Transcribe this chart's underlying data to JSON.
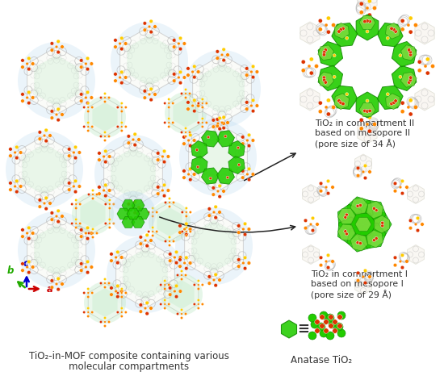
{
  "background_color": "#ffffff",
  "caption_main_line1": "TiO₂-in-MOF composite containing various",
  "caption_main_line2": "molecular compartments",
  "caption_II_line1": "TiO₂ in compartment II",
  "caption_II_line2": "based on mesopore II",
  "caption_II_line3": "(pore size of 34 Å)",
  "caption_I_line1": "TiO₂ in compartment I",
  "caption_I_line2": "based on mesopore I",
  "caption_I_line3": "(pore size of 29 Å)",
  "caption_bottom": "Anatase TiO₂",
  "axis_a_color": "#cc0000",
  "axis_b_color": "#22aa00",
  "axis_c_color": "#0000cc",
  "green_tio2": "#22cc00",
  "green_dark": "#118800",
  "green_light": "#88dd44",
  "blue_pore": "#b8d8f0",
  "green_pore": "#b8e8c0",
  "orange_node": "#ff8800",
  "yellow_node": "#ffcc00",
  "red_node": "#dd3300",
  "ligand_gray": "#aaaaaa",
  "ligand_pale": "#e8e0d8",
  "text_color": "#333333",
  "fig_width": 5.5,
  "fig_height": 4.66,
  "dpi": 100
}
